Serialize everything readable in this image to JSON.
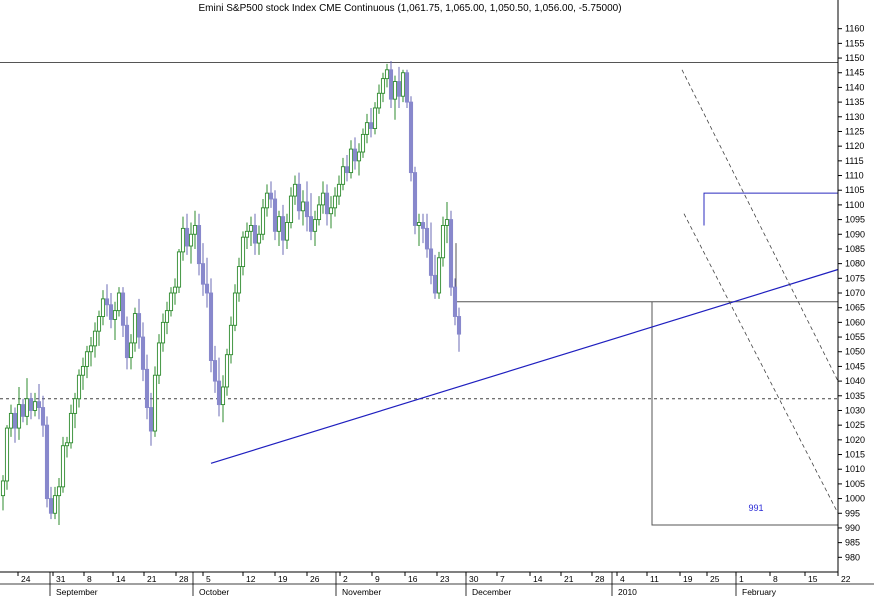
{
  "chart_data": {
    "type": "candlestick",
    "title": "Emini S&P500 stock Index CME Continuous (1,061.75, 1,065.00, 1,050.50, 1,056.00, -5.75000)",
    "ylim": [
      975,
      1165
    ],
    "y_ticks": [
      980,
      985,
      990,
      995,
      1000,
      1005,
      1010,
      1015,
      1020,
      1025,
      1030,
      1035,
      1040,
      1045,
      1050,
      1055,
      1060,
      1065,
      1070,
      1075,
      1080,
      1085,
      1090,
      1095,
      1100,
      1105,
      1110,
      1115,
      1120,
      1125,
      1130,
      1135,
      1140,
      1145,
      1150,
      1155,
      1160
    ],
    "x_day_ticks": [
      "24",
      "31",
      "8",
      "14",
      "21",
      "28",
      "5",
      "12",
      "19",
      "26",
      "2",
      "9",
      "16",
      "23",
      "30",
      "7",
      "14",
      "21",
      "28",
      "4",
      "11",
      "19",
      "25",
      "1",
      "8",
      "15",
      "22"
    ],
    "month_labels": [
      "September",
      "October",
      "November",
      "December",
      "2010",
      "February"
    ],
    "annotations": {
      "note_label": "991",
      "resistance_high": 1148.5,
      "box_top": 1104,
      "support_level": 1067,
      "dashed_level": 1034,
      "target_level": 991,
      "trendline": {
        "start_bar": 52,
        "start_price": 1012,
        "end_bar": 217,
        "end_price": 1078
      }
    },
    "colors": {
      "up": "#2e8b2e",
      "down": "#8888cc",
      "trendline": "#1f1fbf",
      "box": "#2b2bbf"
    },
    "ohlc": [
      [
        1001,
        1008,
        996,
        1006
      ],
      [
        1006,
        1025,
        1003,
        1024
      ],
      [
        1024,
        1032,
        1021,
        1029
      ],
      [
        1029,
        1031,
        1019,
        1024
      ],
      [
        1024,
        1038,
        1020,
        1032
      ],
      [
        1032,
        1034,
        1026,
        1028
      ],
      [
        1028,
        1041,
        1025,
        1034
      ],
      [
        1034,
        1036,
        1027,
        1030
      ],
      [
        1030,
        1036,
        1028,
        1033
      ],
      [
        1033,
        1039,
        1027,
        1031
      ],
      [
        1031,
        1035,
        1021,
        1025
      ],
      [
        1025,
        1028,
        997,
        1000
      ],
      [
        1000,
        1004,
        993,
        995
      ],
      [
        995,
        1004,
        993,
        1001
      ],
      [
        1001,
        1007,
        991,
        1004
      ],
      [
        1004,
        1021,
        1002,
        1018
      ],
      [
        1018,
        1021,
        1014,
        1019
      ],
      [
        1019,
        1032,
        1017,
        1029
      ],
      [
        1029,
        1036,
        1024,
        1034
      ],
      [
        1034,
        1044,
        1031,
        1042
      ],
      [
        1042,
        1048,
        1037,
        1045
      ],
      [
        1045,
        1052,
        1041,
        1050
      ],
      [
        1050,
        1055,
        1045,
        1052
      ],
      [
        1052,
        1060,
        1048,
        1057
      ],
      [
        1057,
        1064,
        1052,
        1062
      ],
      [
        1062,
        1071,
        1059,
        1068
      ],
      [
        1068,
        1073,
        1062,
        1066
      ],
      [
        1066,
        1070,
        1058,
        1061
      ],
      [
        1061,
        1067,
        1054,
        1064
      ],
      [
        1064,
        1072,
        1062,
        1070
      ],
      [
        1070,
        1072,
        1055,
        1059
      ],
      [
        1059,
        1062,
        1044,
        1048
      ],
      [
        1048,
        1056,
        1044,
        1053
      ],
      [
        1053,
        1065,
        1050,
        1063
      ],
      [
        1063,
        1068,
        1051,
        1055
      ],
      [
        1055,
        1060,
        1040,
        1044
      ],
      [
        1044,
        1049,
        1027,
        1031
      ],
      [
        1031,
        1036,
        1018,
        1023
      ],
      [
        1023,
        1045,
        1021,
        1042
      ],
      [
        1042,
        1056,
        1039,
        1053
      ],
      [
        1053,
        1063,
        1050,
        1060
      ],
      [
        1060,
        1067,
        1056,
        1064
      ],
      [
        1064,
        1072,
        1062,
        1070
      ],
      [
        1070,
        1075,
        1066,
        1072
      ],
      [
        1072,
        1085,
        1070,
        1084
      ],
      [
        1084,
        1096,
        1081,
        1092
      ],
      [
        1092,
        1097,
        1083,
        1086
      ],
      [
        1086,
        1094,
        1080,
        1090
      ],
      [
        1090,
        1098,
        1085,
        1093
      ],
      [
        1093,
        1097,
        1076,
        1080
      ],
      [
        1080,
        1087,
        1069,
        1073
      ],
      [
        1073,
        1082,
        1065,
        1070
      ],
      [
        1070,
        1075,
        1043,
        1047
      ],
      [
        1047,
        1052,
        1036,
        1040
      ],
      [
        1040,
        1048,
        1028,
        1032
      ],
      [
        1032,
        1042,
        1026,
        1038
      ],
      [
        1038,
        1051,
        1035,
        1049
      ],
      [
        1049,
        1062,
        1046,
        1059
      ],
      [
        1059,
        1073,
        1057,
        1070
      ],
      [
        1070,
        1082,
        1067,
        1079
      ],
      [
        1079,
        1091,
        1076,
        1089
      ],
      [
        1089,
        1094,
        1085,
        1091
      ],
      [
        1091,
        1096,
        1086,
        1093
      ],
      [
        1093,
        1097,
        1083,
        1087
      ],
      [
        1087,
        1093,
        1083,
        1090
      ],
      [
        1090,
        1102,
        1088,
        1099
      ],
      [
        1099,
        1107,
        1096,
        1104
      ],
      [
        1104,
        1108,
        1099,
        1102
      ],
      [
        1102,
        1105,
        1088,
        1091
      ],
      [
        1091,
        1098,
        1086,
        1096
      ],
      [
        1096,
        1100,
        1083,
        1088
      ],
      [
        1088,
        1097,
        1085,
        1094
      ],
      [
        1094,
        1106,
        1092,
        1103
      ],
      [
        1103,
        1110,
        1100,
        1107
      ],
      [
        1107,
        1111,
        1095,
        1098
      ],
      [
        1098,
        1105,
        1093,
        1101
      ],
      [
        1101,
        1108,
        1091,
        1096
      ],
      [
        1096,
        1104,
        1088,
        1091
      ],
      [
        1091,
        1098,
        1086,
        1095
      ],
      [
        1095,
        1103,
        1093,
        1100
      ],
      [
        1100,
        1108,
        1097,
        1104
      ],
      [
        1104,
        1107,
        1093,
        1097
      ],
      [
        1097,
        1103,
        1092,
        1099
      ],
      [
        1099,
        1106,
        1096,
        1103
      ],
      [
        1103,
        1110,
        1100,
        1107
      ],
      [
        1107,
        1116,
        1105,
        1113
      ],
      [
        1113,
        1117,
        1108,
        1111
      ],
      [
        1111,
        1122,
        1109,
        1119
      ],
      [
        1119,
        1123,
        1112,
        1115
      ],
      [
        1115,
        1121,
        1110,
        1118
      ],
      [
        1118,
        1126,
        1116,
        1124
      ],
      [
        1124,
        1131,
        1121,
        1128
      ],
      [
        1128,
        1133,
        1123,
        1126
      ],
      [
        1126,
        1135,
        1124,
        1133
      ],
      [
        1133,
        1141,
        1131,
        1138
      ],
      [
        1138,
        1145,
        1135,
        1143
      ],
      [
        1143,
        1148,
        1140,
        1146
      ],
      [
        1146,
        1149,
        1133,
        1136
      ],
      [
        1136,
        1144,
        1129,
        1142
      ],
      [
        1142,
        1147,
        1133,
        1137
      ],
      [
        1137,
        1146,
        1135,
        1145
      ],
      [
        1145,
        1146,
        1133,
        1135
      ],
      [
        1135,
        1137,
        1108,
        1111
      ],
      [
        1111,
        1113,
        1090,
        1093
      ],
      [
        1093,
        1097,
        1086,
        1094
      ],
      [
        1094,
        1097,
        1087,
        1092
      ],
      [
        1092,
        1097,
        1082,
        1085
      ],
      [
        1085,
        1094,
        1073,
        1076
      ],
      [
        1076,
        1083,
        1068,
        1070
      ],
      [
        1070,
        1084,
        1068,
        1082
      ],
      [
        1082,
        1096,
        1079,
        1093
      ],
      [
        1093,
        1101,
        1087,
        1095
      ],
      [
        1095,
        1098,
        1069,
        1072
      ],
      [
        1072,
        1075,
        1059,
        1062
      ],
      [
        1062,
        1065,
        1050,
        1056
      ]
    ]
  }
}
